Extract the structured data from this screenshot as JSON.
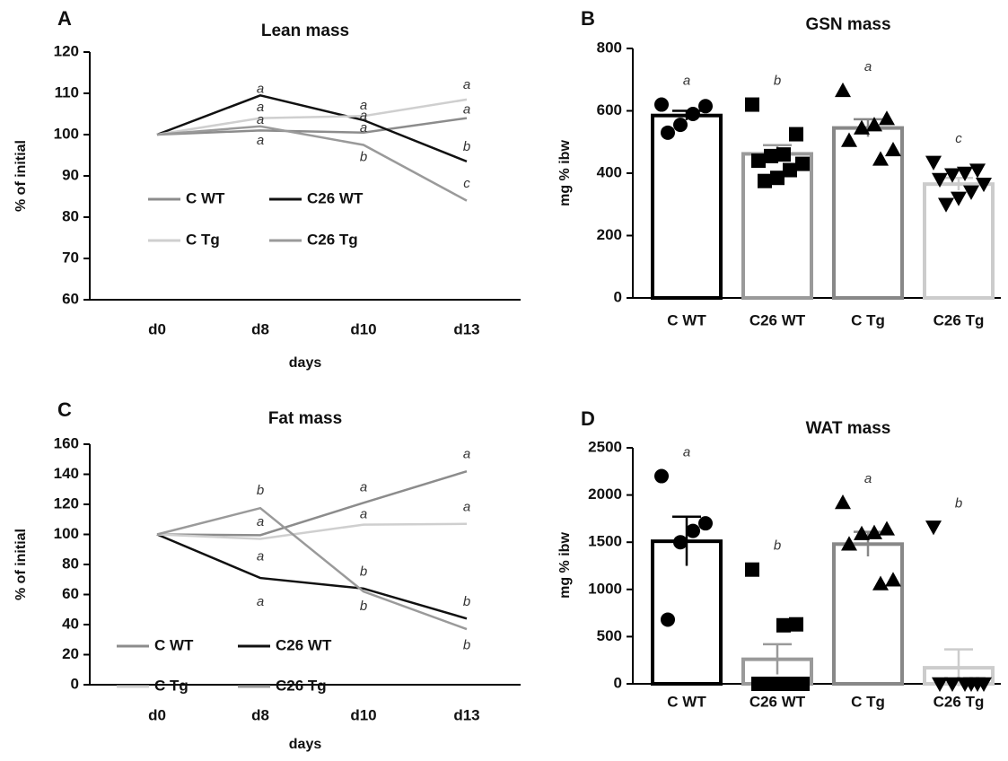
{
  "chart_data": [
    {
      "type": "line",
      "panel": "A",
      "title": "Lean mass",
      "y_label": "% of initial",
      "x_label": "days",
      "categories": [
        "d0",
        "d8",
        "d10",
        "d13"
      ],
      "ylim": [
        60,
        120
      ],
      "yticks": [
        60,
        70,
        80,
        90,
        100,
        110,
        120
      ],
      "legend": "lower-left",
      "series": [
        {
          "name": "C WT",
          "color": "#8c8c8c",
          "values": [
            100,
            101,
            100.5,
            104
          ]
        },
        {
          "name": "C26 WT",
          "color": "#111111",
          "values": [
            100,
            109.5,
            103.5,
            93.5
          ]
        },
        {
          "name": "C Tg",
          "color": "#cfcfcf",
          "values": [
            100,
            104,
            104.5,
            108.5
          ]
        },
        {
          "name": "C26 Tg",
          "color": "#9a9a9a",
          "values": [
            100,
            102,
            97.5,
            84
          ]
        }
      ],
      "annotations": [
        {
          "text": "a",
          "x": "d8",
          "y": 111
        },
        {
          "text": "a",
          "x": "d8",
          "y": 106.5
        },
        {
          "text": "a",
          "x": "d8",
          "y": 103.5
        },
        {
          "text": "a",
          "x": "d8",
          "y": 98.5
        },
        {
          "text": "a",
          "x": "d10",
          "y": 107
        },
        {
          "text": "a",
          "x": "d10",
          "y": 104.5
        },
        {
          "text": "a",
          "x": "d10",
          "y": 101.5
        },
        {
          "text": "b",
          "x": "d10",
          "y": 94.5
        },
        {
          "text": "a",
          "x": "d13",
          "y": 112
        },
        {
          "text": "a",
          "x": "d13",
          "y": 106
        },
        {
          "text": "b",
          "x": "d13",
          "y": 97
        },
        {
          "text": "c",
          "x": "d13",
          "y": 88
        }
      ]
    },
    {
      "type": "bar",
      "panel": "B",
      "title": "GSN mass",
      "y_label": "mg % ibw",
      "categories": [
        "C WT",
        "C26 WT",
        "C Tg",
        "C26 Tg"
      ],
      "ylim": [
        0,
        800
      ],
      "yticks": [
        0,
        200,
        400,
        600,
        800
      ],
      "values": [
        585,
        462,
        545,
        365
      ],
      "errors": [
        15,
        28,
        28,
        20
      ],
      "colors": [
        "#000000",
        "#9a9a9a",
        "#888888",
        "#cccccc"
      ],
      "markers": [
        "circle",
        "square",
        "triangle-up",
        "triangle-down"
      ],
      "letters": [
        "a",
        "b",
        "a",
        "c"
      ],
      "points": [
        [
          620,
          615,
          590,
          555,
          530
        ],
        [
          620,
          525,
          460,
          455,
          440,
          430,
          410,
          385,
          375
        ],
        [
          665,
          575,
          555,
          545,
          505,
          475,
          445
        ],
        [
          435,
          410,
          400,
          395,
          380,
          365,
          340,
          320,
          300
        ]
      ]
    },
    {
      "type": "line",
      "panel": "C",
      "title": "Fat mass",
      "y_label": "% of initial",
      "x_label": "days",
      "categories": [
        "d0",
        "d8",
        "d10",
        "d13"
      ],
      "ylim": [
        0,
        160
      ],
      "yticks": [
        0,
        20,
        40,
        60,
        80,
        100,
        120,
        140,
        160
      ],
      "legend": "lower-left",
      "series": [
        {
          "name": "C WT",
          "color": "#8c8c8c",
          "values": [
            100,
            99.5,
            121,
            142
          ]
        },
        {
          "name": "C26 WT",
          "color": "#111111",
          "values": [
            100,
            71,
            64,
            44
          ]
        },
        {
          "name": "C Tg",
          "color": "#cfcfcf",
          "values": [
            100,
            97,
            106.5,
            107
          ]
        },
        {
          "name": "C26 Tg",
          "color": "#9a9a9a",
          "values": [
            100,
            117.5,
            62,
            37
          ]
        }
      ],
      "annotations": [
        {
          "text": "b",
          "x": "d8",
          "y": 129
        },
        {
          "text": "a",
          "x": "d8",
          "y": 108
        },
        {
          "text": "a",
          "x": "d8",
          "y": 85
        },
        {
          "text": "a",
          "x": "d8",
          "y": 55
        },
        {
          "text": "a",
          "x": "d10",
          "y": 131
        },
        {
          "text": "a",
          "x": "d10",
          "y": 113
        },
        {
          "text": "b",
          "x": "d10",
          "y": 75
        },
        {
          "text": "b",
          "x": "d10",
          "y": 52
        },
        {
          "text": "a",
          "x": "d13",
          "y": 153
        },
        {
          "text": "a",
          "x": "d13",
          "y": 118
        },
        {
          "text": "b",
          "x": "d13",
          "y": 55
        },
        {
          "text": "b",
          "x": "d13",
          "y": 26
        }
      ]
    },
    {
      "type": "bar",
      "panel": "D",
      "title": "WAT mass",
      "y_label": "mg % ibw",
      "categories": [
        "C WT",
        "C26 WT",
        "C Tg",
        "C26 Tg"
      ],
      "ylim": [
        0,
        2500
      ],
      "yticks": [
        0,
        500,
        1000,
        1500,
        2000,
        2500
      ],
      "values": [
        1510,
        260,
        1480,
        170
      ],
      "errors": [
        260,
        160,
        130,
        195
      ],
      "colors": [
        "#000000",
        "#9a9a9a",
        "#888888",
        "#cccccc"
      ],
      "markers": [
        "circle",
        "square",
        "triangle-up",
        "triangle-down"
      ],
      "letters": [
        "a",
        "b",
        "a",
        "b"
      ],
      "points": [
        [
          2200,
          1700,
          1620,
          1500,
          680
        ],
        [
          1210,
          630,
          620,
          0,
          0,
          0,
          0,
          0,
          0
        ],
        [
          1920,
          1640,
          1600,
          1590,
          1480,
          1100,
          1060
        ],
        [
          1660,
          0,
          0,
          0,
          0,
          0,
          0
        ]
      ]
    }
  ]
}
